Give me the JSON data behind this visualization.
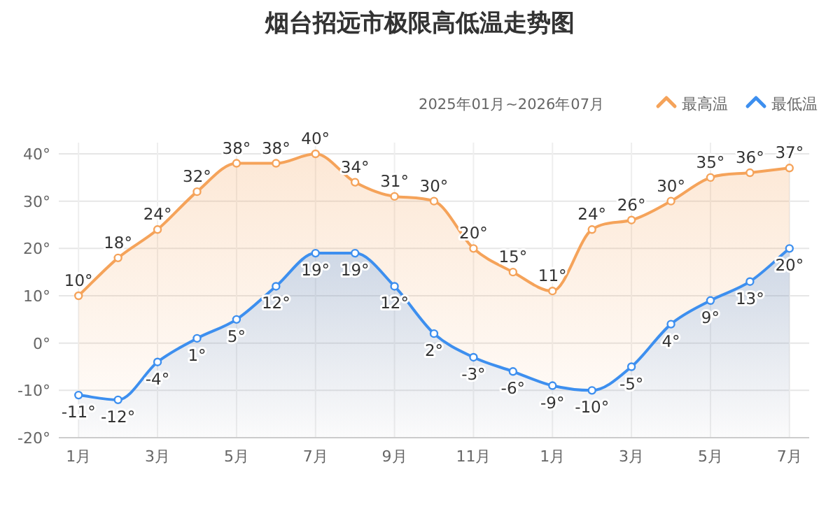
{
  "chart_data": {
    "type": "line",
    "title": "烟台招远市极限高低温走势图",
    "subtitle": "2025年01月~2026年07月",
    "categories": [
      "1月",
      null,
      "3月",
      null,
      "5月",
      null,
      "7月",
      null,
      "9月",
      null,
      "11月",
      null,
      "1月",
      null,
      "3月",
      null,
      "5月",
      null,
      "7月"
    ],
    "series": [
      {
        "name": "最高温",
        "color": "#f5a35a",
        "values": [
          10,
          18,
          24,
          32,
          38,
          38,
          40,
          34,
          31,
          30,
          20,
          15,
          11,
          24,
          26,
          30,
          35,
          36,
          37
        ],
        "value_labels": [
          "10°",
          "18°",
          "24°",
          "32°",
          "38°",
          "38°",
          "40°",
          "34°",
          "31°",
          "30°",
          "20°",
          "15°",
          "11°",
          "24°",
          "26°",
          "30°",
          "35°",
          "36°",
          "37°"
        ]
      },
      {
        "name": "最低温",
        "color": "#3d8fef",
        "values": [
          -11,
          -12,
          -4,
          1,
          5,
          12,
          19,
          19,
          12,
          2,
          -3,
          -6,
          -9,
          -10,
          -5,
          4,
          9,
          13,
          20
        ],
        "value_labels": [
          "-11°",
          "-12°",
          "-4°",
          "1°",
          "5°",
          "12°",
          "19°",
          "19°",
          "12°",
          "2°",
          "-3°",
          "-6°",
          "-9°",
          "-10°",
          "-5°",
          "4°",
          "9°",
          "13°",
          "20°"
        ]
      }
    ],
    "ylim": [
      -20,
      40
    ],
    "yticks": [
      {
        "value": -20,
        "label": "-20°"
      },
      {
        "value": -10,
        "label": "-10°"
      },
      {
        "value": 0,
        "label": "0°"
      },
      {
        "value": 10,
        "label": "10°"
      },
      {
        "value": 20,
        "label": "20°"
      },
      {
        "value": 30,
        "label": "30°"
      },
      {
        "value": 40,
        "label": "40°"
      }
    ],
    "grid": true,
    "legend": "top right",
    "marker": "circle",
    "line_style": "solid"
  }
}
